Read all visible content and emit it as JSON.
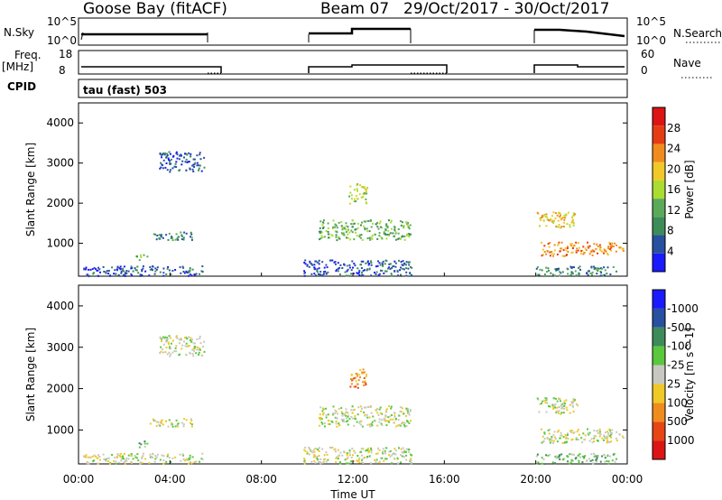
{
  "header": {
    "station": "Goose Bay (fitACF)",
    "beam": "Beam 07",
    "dates": "29/Oct/2017 - 30/Oct/2017"
  },
  "status_panels": {
    "nsky": {
      "label": "N.Sky",
      "left_ticks": [
        "10^5",
        "10^0"
      ],
      "right_ticks": [
        "10^5",
        "10^0"
      ],
      "right_label": "N.Search"
    },
    "freq": {
      "label_line1": "Freq.",
      "label_line2": "[MHz]",
      "left_ticks": [
        "18",
        "8"
      ],
      "right_ticks": [
        "60",
        "0"
      ],
      "right_label": "Nave"
    },
    "cpid": {
      "label": "CPID",
      "text": "tau (fast) 503"
    }
  },
  "colors": {
    "power": [
      "#1a1aff",
      "#2850a0",
      "#3c8c5a",
      "#5aaa5a",
      "#aadc32",
      "#f0c828",
      "#f08c1e",
      "#e63c14",
      "#dc1414"
    ],
    "velocity": [
      "#dc1414",
      "#e64614",
      "#f08c1e",
      "#f0c828",
      "#c8c8c0",
      "#5ac83c",
      "#3c8c5a",
      "#2850a0",
      "#1a1aff"
    ]
  },
  "chart_data": [
    {
      "type": "heatmap",
      "title": "Power",
      "ylabel": "Slant Range [km]",
      "ylim": [
        180,
        4500
      ],
      "yticks": [
        "1000",
        "2000",
        "3000",
        "4000"
      ],
      "xlabel": "Time UT",
      "xticks": [
        "00:00",
        "04:00",
        "08:00",
        "12:00",
        "16:00",
        "20:00",
        "00:00"
      ],
      "colorbar_label": "Power [dB]",
      "colorbar_ticks": [
        "4",
        "8",
        "12",
        "16",
        "20",
        "24",
        "28"
      ],
      "echo_regions": [
        {
          "t_start": 0.2,
          "t_end": 5.5,
          "range_km": [
            200,
            450
          ],
          "level": 1
        },
        {
          "t_start": 2.5,
          "t_end": 3.0,
          "range_km": [
            600,
            750
          ],
          "level": 3
        },
        {
          "t_start": 3.0,
          "t_end": 5.0,
          "range_km": [
            1100,
            1300
          ],
          "level": 2
        },
        {
          "t_start": 3.5,
          "t_end": 5.5,
          "range_km": [
            2800,
            3300
          ],
          "level": 1
        },
        {
          "t_start": 9.8,
          "t_end": 14.6,
          "range_km": [
            200,
            600
          ],
          "level": 1
        },
        {
          "t_start": 10.5,
          "t_end": 14.5,
          "range_km": [
            1100,
            1600
          ],
          "level": 3
        },
        {
          "t_start": 11.8,
          "t_end": 12.6,
          "range_km": [
            2000,
            2500
          ],
          "level": 4
        },
        {
          "t_start": 20.0,
          "t_end": 21.8,
          "range_km": [
            1400,
            1800
          ],
          "level": 5
        },
        {
          "t_start": 20.2,
          "t_end": 23.8,
          "range_km": [
            700,
            1050
          ],
          "level": 6
        },
        {
          "t_start": 20.0,
          "t_end": 23.5,
          "range_km": [
            200,
            450
          ],
          "level": 2
        }
      ]
    },
    {
      "type": "heatmap",
      "title": "Velocity",
      "ylabel": "Slant Range [km]",
      "ylim": [
        180,
        4500
      ],
      "yticks": [
        "1000",
        "2000",
        "3000",
        "4000"
      ],
      "xlabel": "Time UT",
      "xticks": [
        "00:00",
        "04:00",
        "08:00",
        "12:00",
        "16:00",
        "20:00",
        "00:00"
      ],
      "colorbar_label": "Velocity [m s^-1]",
      "colorbar_ticks": [
        "1000",
        "500",
        "100",
        "25",
        "-25",
        "-100",
        "-500",
        "-1000"
      ],
      "echo_regions": [
        {
          "t_start": 0.2,
          "t_end": 5.5,
          "range_km": [
            200,
            450
          ],
          "level": 4
        },
        {
          "t_start": 2.5,
          "t_end": 3.0,
          "range_km": [
            600,
            750
          ],
          "level": 5
        },
        {
          "t_start": 3.0,
          "t_end": 5.0,
          "range_km": [
            1100,
            1300
          ],
          "level": 4
        },
        {
          "t_start": 3.5,
          "t_end": 5.5,
          "range_km": [
            2800,
            3300
          ],
          "level": 4
        },
        {
          "t_start": 9.8,
          "t_end": 14.6,
          "range_km": [
            200,
            600
          ],
          "level": 4
        },
        {
          "t_start": 10.5,
          "t_end": 14.5,
          "range_km": [
            1100,
            1600
          ],
          "level": 4
        },
        {
          "t_start": 11.8,
          "t_end": 12.6,
          "range_km": [
            2000,
            2500
          ],
          "level": 2
        },
        {
          "t_start": 20.0,
          "t_end": 21.8,
          "range_km": [
            1400,
            1800
          ],
          "level": 4
        },
        {
          "t_start": 20.2,
          "t_end": 23.8,
          "range_km": [
            700,
            1050
          ],
          "level": 4
        },
        {
          "t_start": 20.0,
          "t_end": 23.5,
          "range_km": [
            200,
            450
          ],
          "level": 5
        }
      ]
    }
  ]
}
